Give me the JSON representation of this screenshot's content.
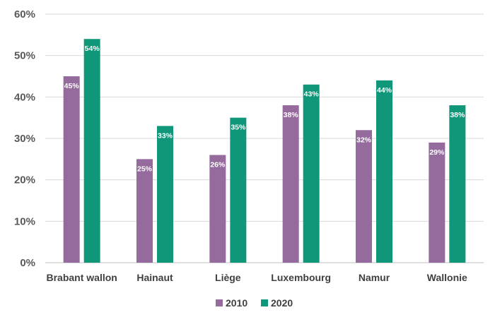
{
  "chart_data": {
    "type": "bar",
    "categories": [
      "Brabant wallon",
      "Hainaut",
      "Liège",
      "Luxembourg",
      "Namur",
      "Wallonie"
    ],
    "series": [
      {
        "name": "2010",
        "color": "#956b9d",
        "values": [
          45,
          25,
          26,
          38,
          32,
          29
        ],
        "labels": [
          "45%",
          "25%",
          "26%",
          "38%",
          "32%",
          "29%"
        ]
      },
      {
        "name": "2020",
        "color": "#10977a",
        "values": [
          54,
          33,
          35,
          43,
          44,
          38
        ],
        "labels": [
          "54%",
          "33%",
          "35%",
          "43%",
          "44%",
          "38%"
        ]
      }
    ],
    "ylim": [
      0,
      60
    ],
    "yticks": [
      0,
      10,
      20,
      30,
      40,
      50,
      60
    ],
    "ytick_labels": [
      "0%",
      "10%",
      "20%",
      "30%",
      "40%",
      "50%",
      "60%"
    ],
    "grid": true,
    "legend_position": "bottom",
    "title": "",
    "xlabel": "",
    "ylabel": ""
  }
}
